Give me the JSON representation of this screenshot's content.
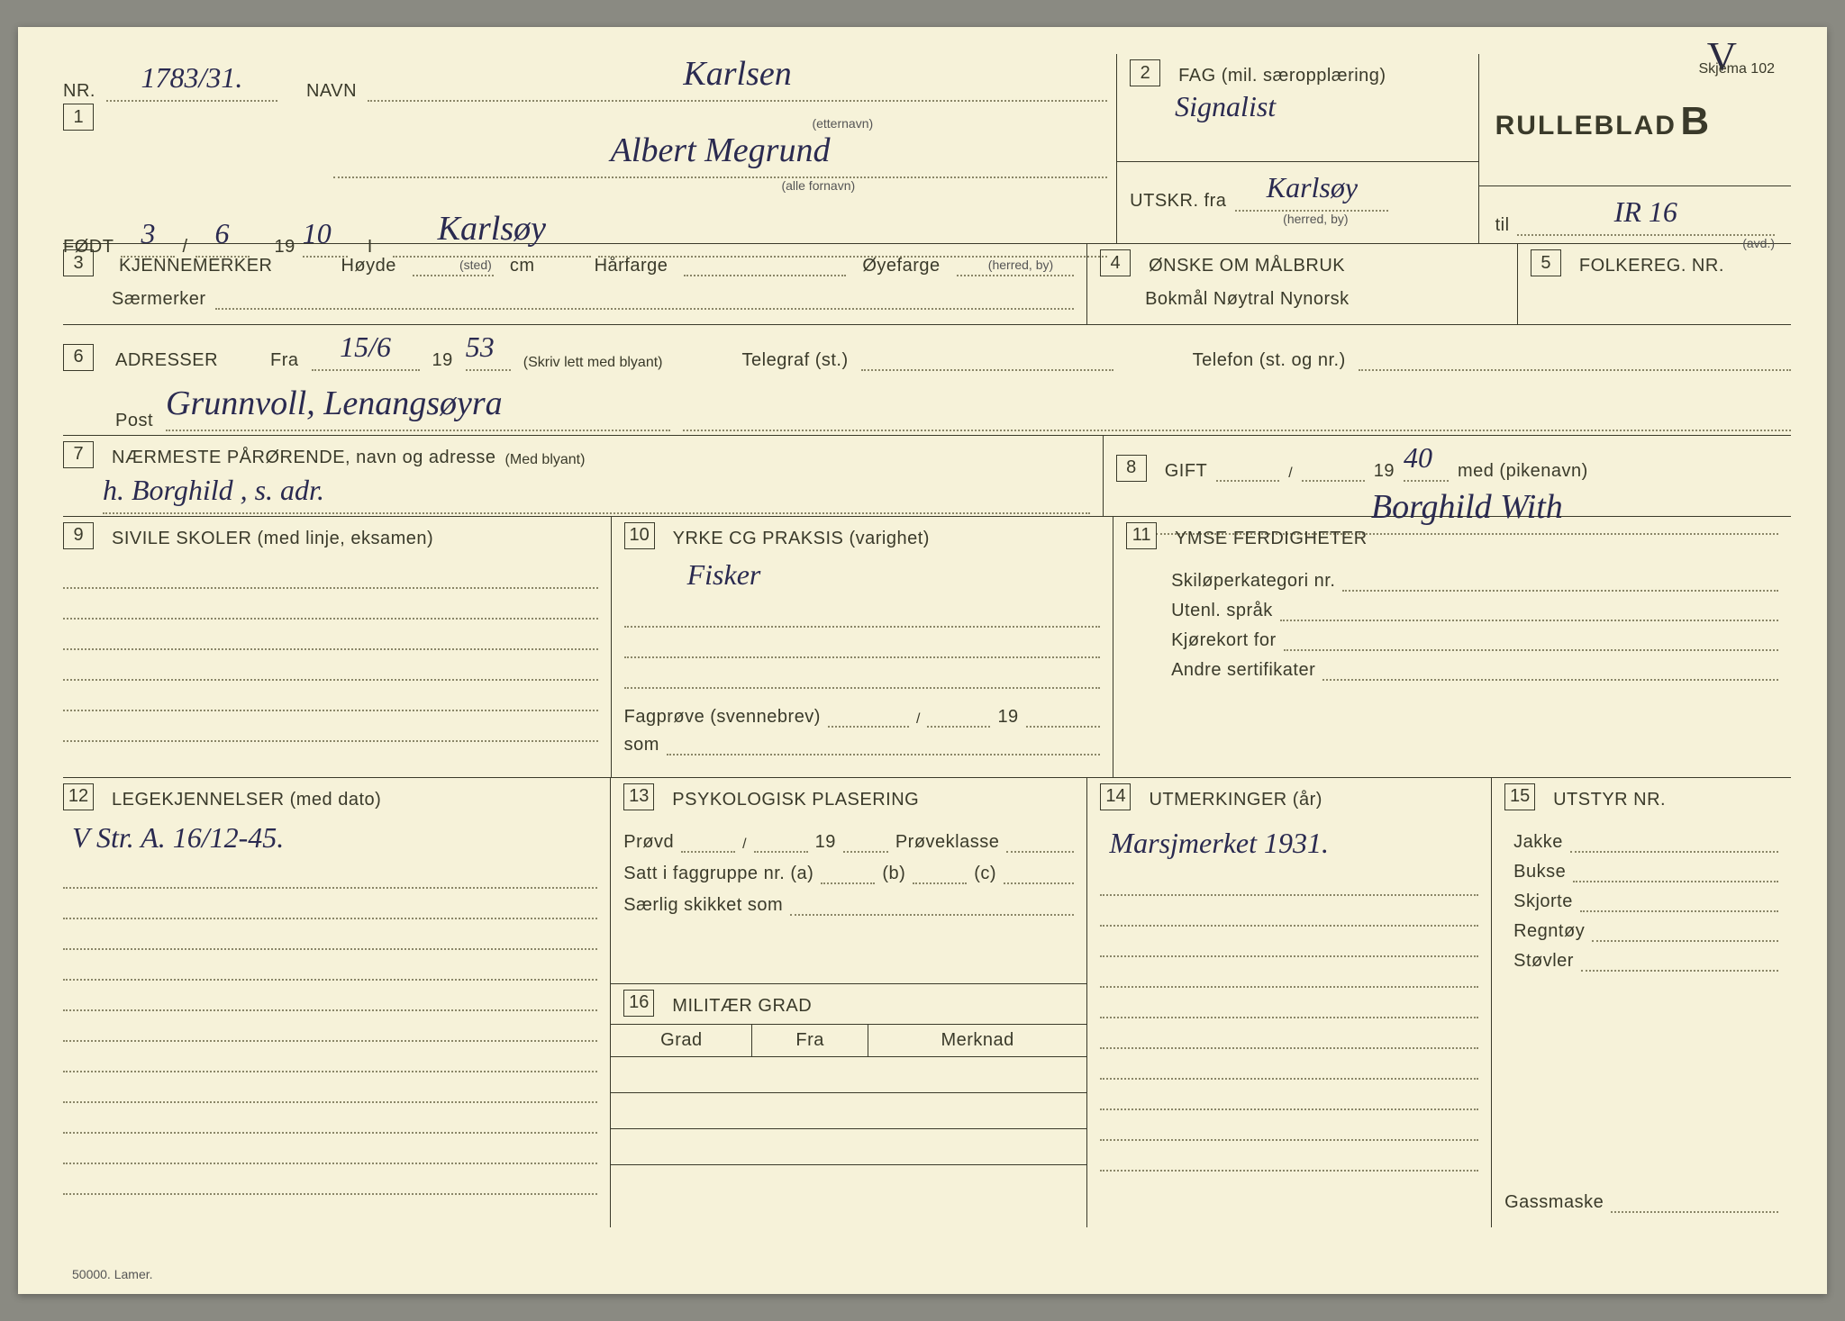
{
  "meta": {
    "skjema": "Skjema 102",
    "title": "RULLEBLAD",
    "title_letter": "B",
    "footer": "50000. Lamer.",
    "corner_mark": "V"
  },
  "box1": {
    "nr_label": "NR.",
    "nr_value": "1783/31.",
    "navn_label": "NAVN",
    "etternavn": "Karlsen",
    "etternavn_sub": "(etternavn)",
    "fornavn": "Albert Megrund",
    "fornavn_sub": "(alle fornavn)",
    "fodt_label": "FØDT",
    "fodt_day": "3",
    "fodt_month": "6",
    "fodt_year_prefix": "19",
    "fodt_year": "10",
    "i_label": "I",
    "sted": "Karlsøy",
    "sted_sub": "(sted)",
    "herred_sub": "(herred, by)"
  },
  "box2": {
    "label": "FAG (mil. særopplæring)",
    "value": "Signalist",
    "utskr_label": "UTSKR. fra",
    "utskr_value": "Karlsøy",
    "utskr_sub": "(herred, by)",
    "til_label": "til",
    "til_value": "IR 16",
    "avd_sub": "(avd.)"
  },
  "box3": {
    "label": "KJENNEMERKER",
    "hoyde": "Høyde",
    "cm": "cm",
    "harfarge": "Hårfarge",
    "oyefarge": "Øyefarge",
    "saermerker": "Særmerker"
  },
  "box4": {
    "label": "ØNSKE OM MÅLBRUK",
    "options": "Bokmål   Nøytral   Nynorsk"
  },
  "box5": {
    "label": "FOLKEREG. NR."
  },
  "box6": {
    "label": "ADRESSER",
    "fra": "Fra",
    "fra_value": "15/6",
    "year_prefix": "19",
    "year_value": "53",
    "skriv": "(Skriv lett med blyant)",
    "telegraf": "Telegraf (st.)",
    "telefon": "Telefon (st. og nr.)",
    "post": "Post",
    "post_value": "Grunnvoll, Lenangsøyra"
  },
  "box7": {
    "label": "NÆRMESTE PÅRØRENDE, navn og adresse",
    "sub": "(Med blyant)",
    "value": "h. Borghild , s. adr."
  },
  "box8": {
    "label": "GIFT",
    "year_prefix": "19",
    "year_value": "40",
    "med": "med (pikenavn)",
    "value": "Borghild With"
  },
  "box9": {
    "label": "SIVILE SKOLER (med linje, eksamen)"
  },
  "box10": {
    "label": "YRKE CG PRAKSIS (varighet)",
    "value": "Fisker",
    "fagprove": "Fagprøve (svennebrev)",
    "year_prefix": "19",
    "som": "som"
  },
  "box11": {
    "label": "YMSE FERDIGHETER",
    "l1": "Skiløperkategori nr.",
    "l2": "Utenl. språk",
    "l3": "Kjørekort for",
    "l4": "Andre sertifikater"
  },
  "box12": {
    "label": "LEGEKJENNELSER (med dato)",
    "value": "V Str. A. 16/12-45."
  },
  "box13": {
    "label": "PSYKOLOGISK PLASERING",
    "provd": "Prøvd",
    "year_prefix": "19",
    "proveklasse": "Prøveklasse",
    "satt": "Satt i faggruppe nr. (a)",
    "b": "(b)",
    "c": "(c)",
    "saerlig": "Særlig skikket som"
  },
  "box14": {
    "label": "UTMERKINGER (år)",
    "value": "Marsjmerket 1931."
  },
  "box15": {
    "label": "UTSTYR NR.",
    "items": [
      "Jakke",
      "Bukse",
      "Skjorte",
      "Regntøy",
      "Støvler"
    ],
    "gassmaske": "Gassmaske"
  },
  "box16": {
    "label": "MILITÆR GRAD",
    "h1": "Grad",
    "h2": "Fra",
    "h3": "Merknad"
  }
}
